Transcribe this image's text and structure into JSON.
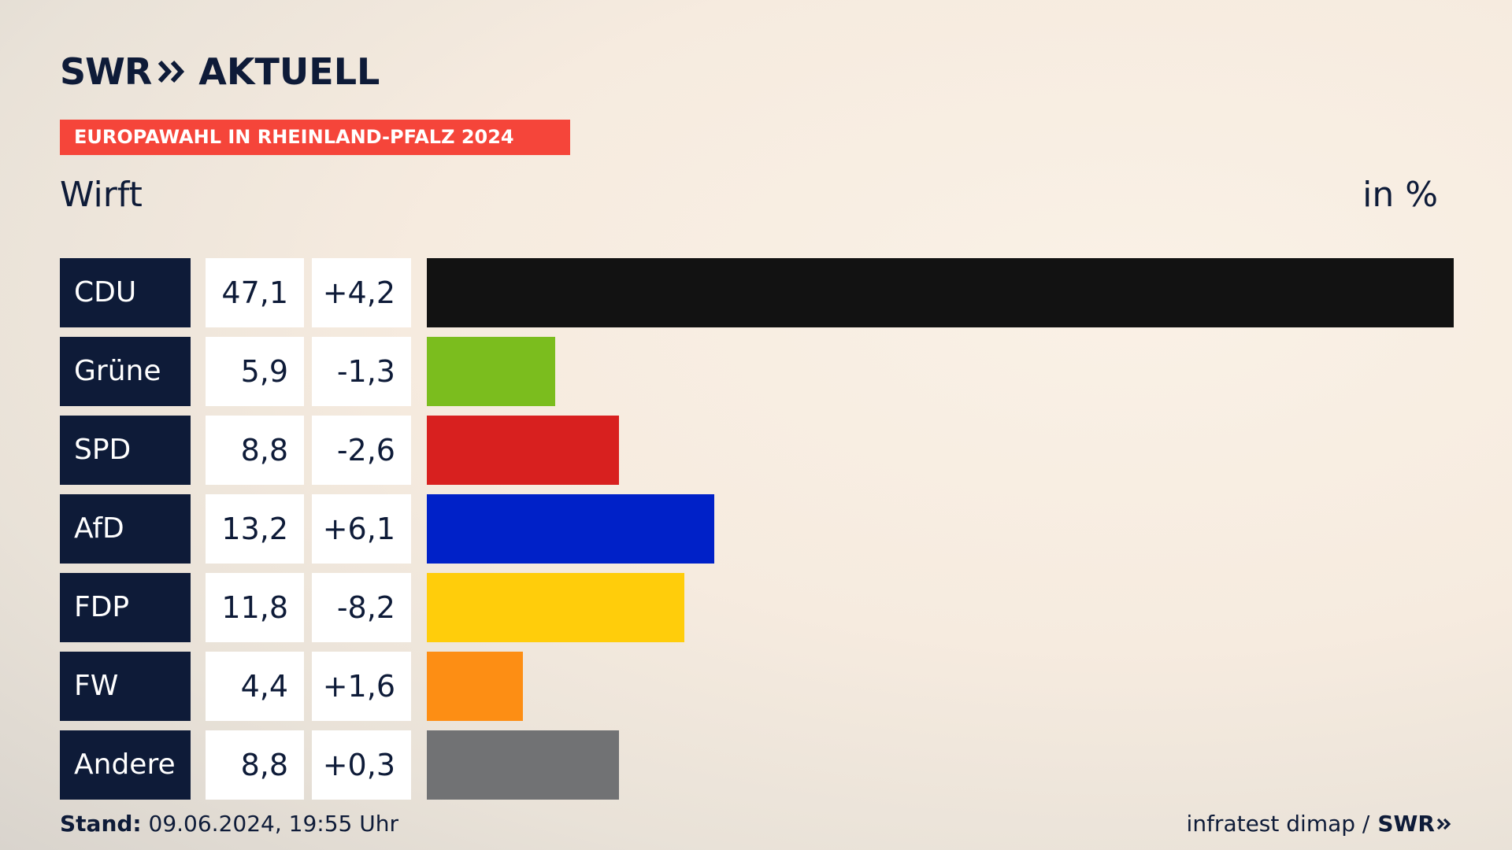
{
  "header": {
    "logo_swr": "SWR",
    "logo_aktuell": "AKTUELL",
    "banner": "EUROPAWAHL IN RHEINLAND-PFALZ 2024",
    "subtitle": "Wirft",
    "unit": "in %"
  },
  "chart_data": {
    "type": "bar",
    "title": "EUROPAWAHL IN RHEINLAND-PFALZ 2024",
    "subtitle": "Wirft",
    "unit": "in %",
    "orientation": "horizontal",
    "xlim": [
      0,
      47.1
    ],
    "rows": [
      {
        "party": "CDU",
        "value": 47.1,
        "value_label": "47,1",
        "diff_label": "+4,2",
        "color": "#121212"
      },
      {
        "party": "Grüne",
        "value": 5.9,
        "value_label": "5,9",
        "diff_label": "-1,3",
        "color": "#7bbd1e"
      },
      {
        "party": "SPD",
        "value": 8.8,
        "value_label": "8,8",
        "diff_label": "-2,6",
        "color": "#d8201f"
      },
      {
        "party": "AfD",
        "value": 13.2,
        "value_label": "13,2",
        "diff_label": "+6,1",
        "color": "#0021c8"
      },
      {
        "party": "FDP",
        "value": 11.8,
        "value_label": "11,8",
        "diff_label": "-8,2",
        "color": "#ffcd0b"
      },
      {
        "party": "FW",
        "value": 4.4,
        "value_label": "4,4",
        "diff_label": "+1,6",
        "color": "#fd8e14"
      },
      {
        "party": "Andere",
        "value": 8.8,
        "value_label": "8,8",
        "diff_label": "+0,3",
        "color": "#717274"
      }
    ]
  },
  "footer": {
    "stand_label": "Stand:",
    "stand_value": " 09.06.2024, 19:55 Uhr",
    "source": "infratest dimap / ",
    "source_brand": "SWR"
  },
  "colors": {
    "navy": "#0e1b38",
    "banner": "#f5453a"
  }
}
